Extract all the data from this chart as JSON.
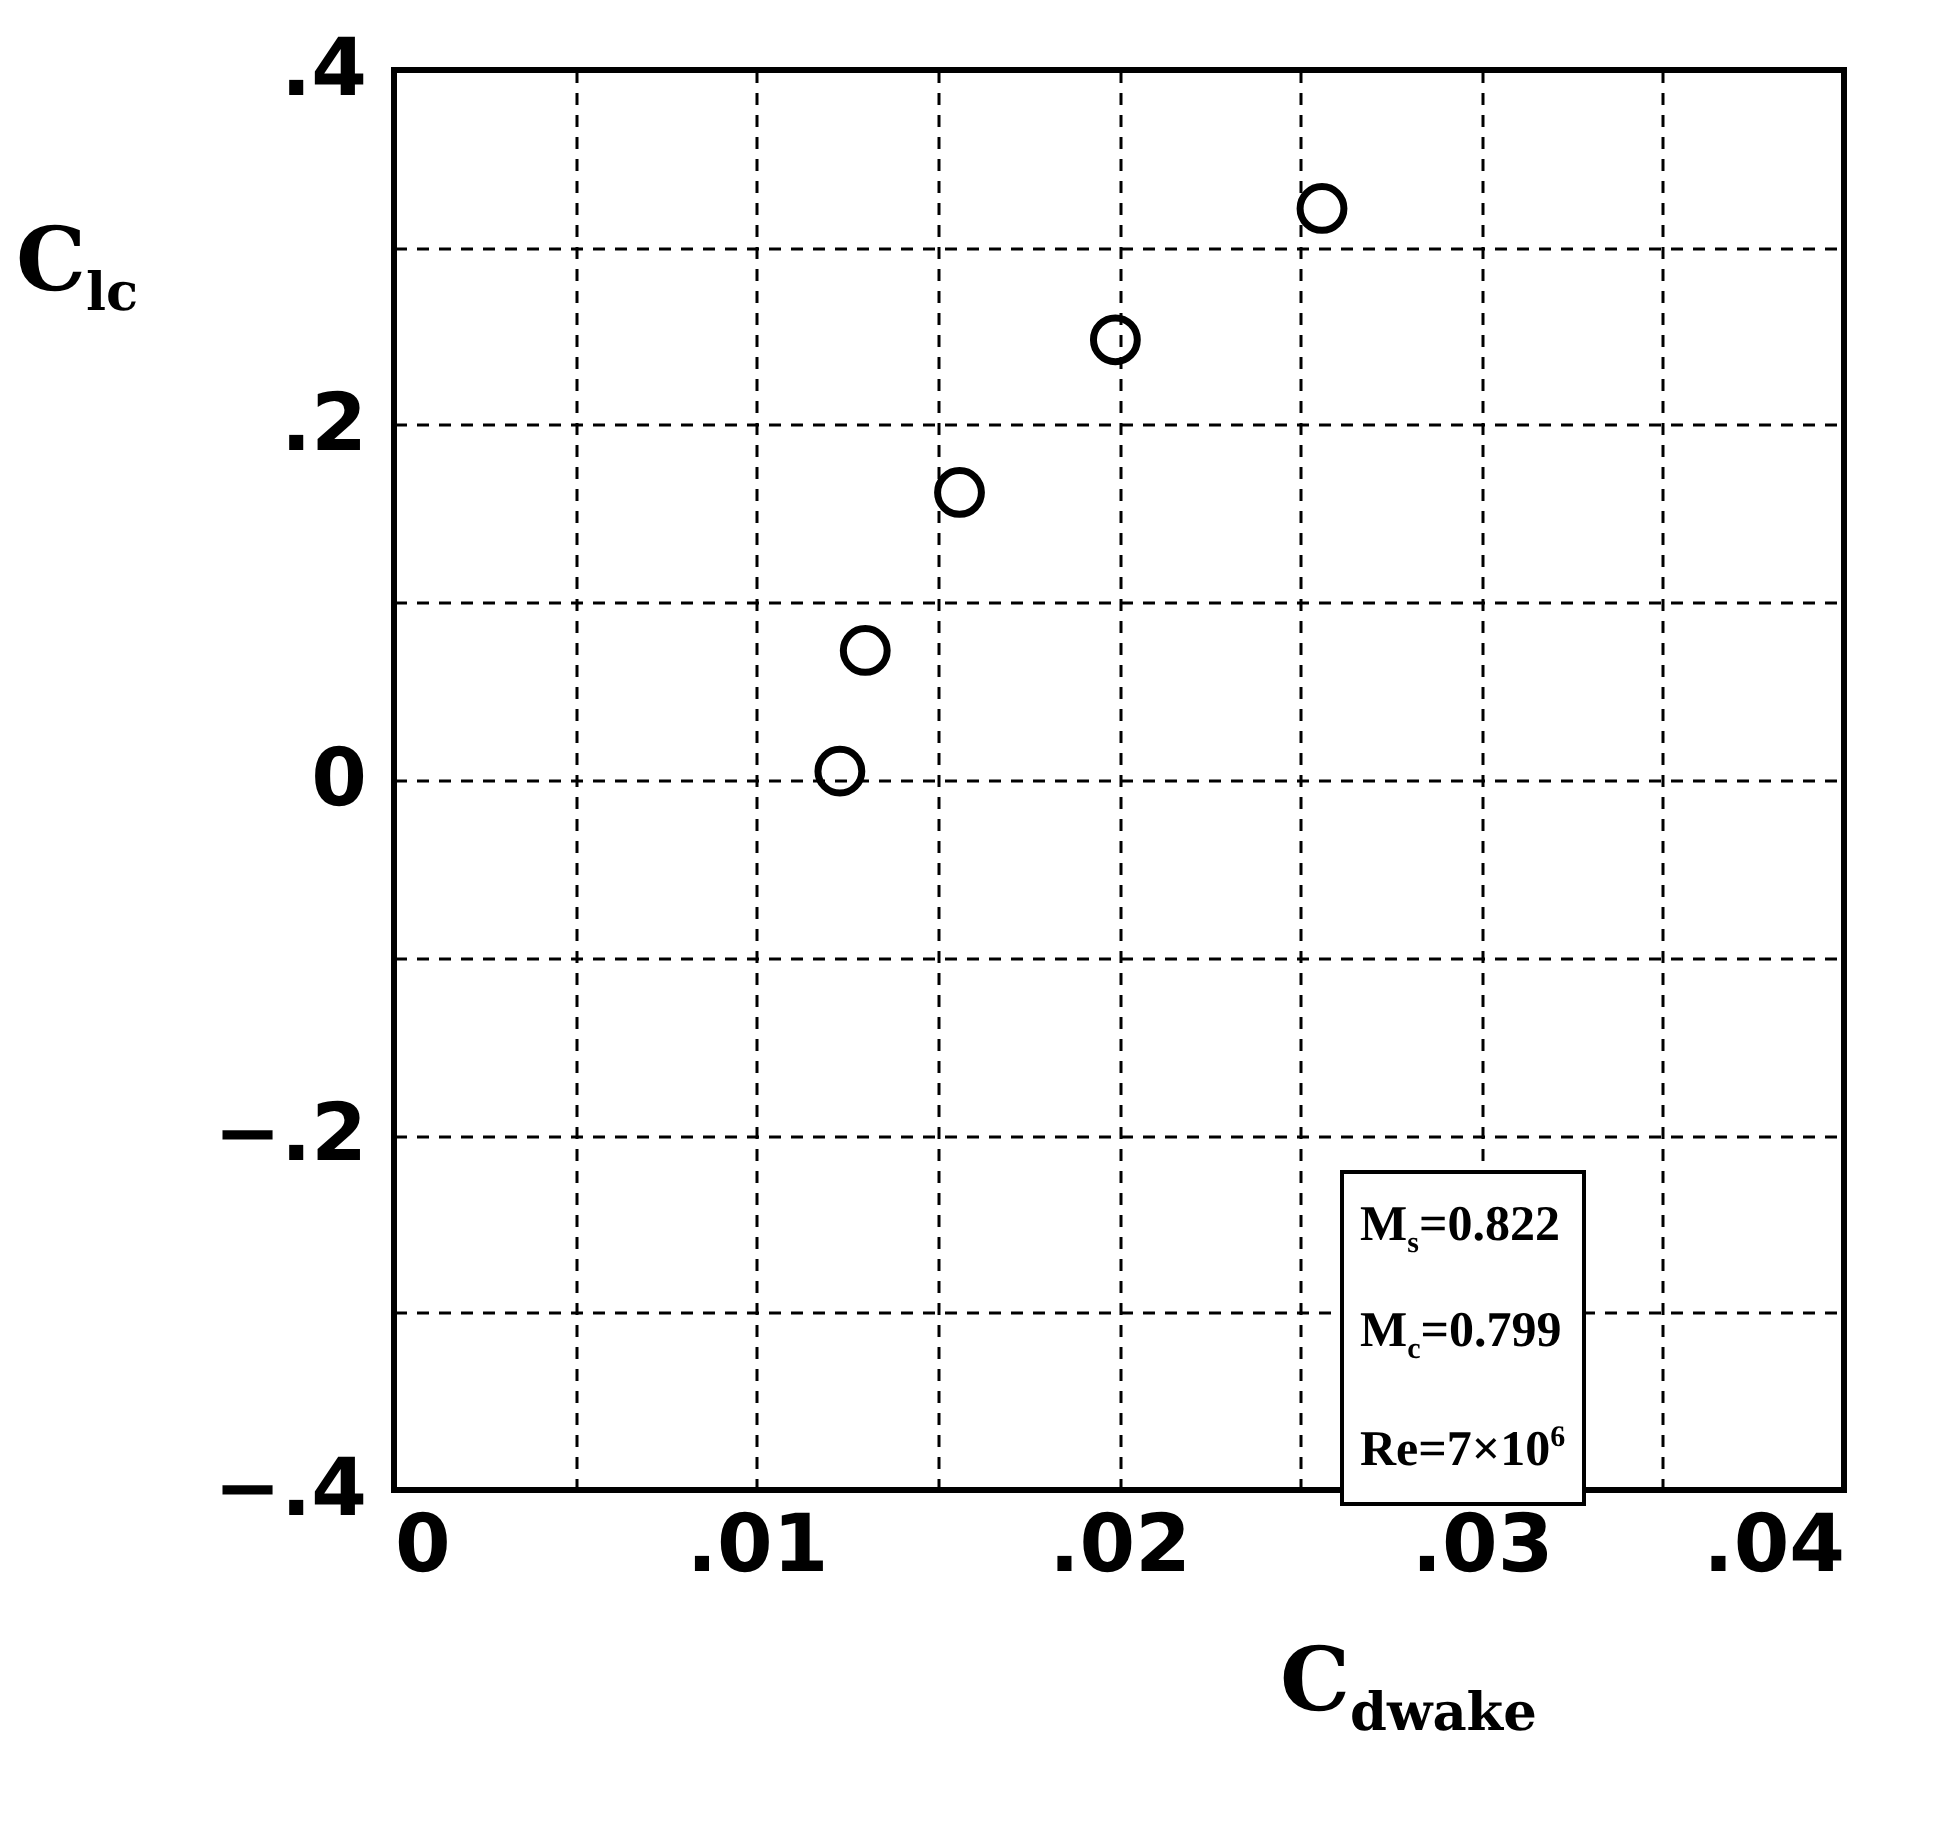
{
  "chart_data": {
    "type": "scatter",
    "xlabel": "C$_{dwake}$",
    "ylabel": "C$_{lc}$",
    "x": [
      0.0123,
      0.013,
      0.0156,
      0.0199,
      0.0256
    ],
    "series": [
      {
        "color": "#000000",
        "values": [
          0.005,
          0.073,
          0.162,
          0.248,
          0.322
        ]
      }
    ],
    "marker": "circle",
    "xlim": [
      0,
      0.04
    ],
    "xticks": [
      {
        "value": 0,
        "label": "0"
      },
      {
        "value": 0.005,
        "label": null
      },
      {
        "value": 0.01,
        "label": ".01"
      },
      {
        "value": 0.015,
        "label": null
      },
      {
        "value": 0.02,
        "label": ".02"
      },
      {
        "value": 0.025,
        "label": null
      },
      {
        "value": 0.03,
        "label": ".03"
      },
      {
        "value": 0.035,
        "label": null
      },
      {
        "value": 0.04,
        "label": ".04"
      }
    ],
    "ylim": [
      -0.4,
      0.4
    ],
    "yticks": [
      {
        "value": -0.4,
        "label": "−.4"
      },
      {
        "value": -0.3,
        "label": null
      },
      {
        "value": -0.2,
        "label": "−.2"
      },
      {
        "value": -0.1,
        "label": null
      },
      {
        "value": 0,
        "label": "0"
      },
      {
        "value": 0.1,
        "label": null
      },
      {
        "value": 0.2,
        "label": ".2"
      },
      {
        "value": 0.3,
        "label": null
      },
      {
        "value": 0.4,
        "label": ".4"
      }
    ],
    "grid": true,
    "annotations": [
      "M$_{s}$=0.822",
      "M$_{c}$=0.799",
      "Re=7×10$^{6}$"
    ]
  }
}
